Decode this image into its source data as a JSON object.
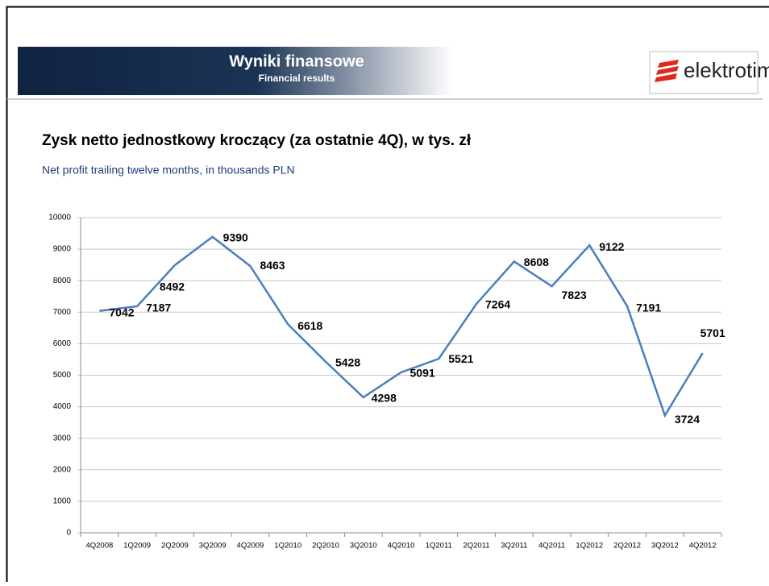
{
  "header": {
    "title": "Wyniki finansowe",
    "subtitle": "Financial results",
    "logo": "elektrotim"
  },
  "chart_data": {
    "type": "line",
    "title": "Zysk netto jednostkowy kroczący (za ostatnie 4Q), w tys. zł",
    "subtitle": "Net profit trailing twelve months, in thousands PLN",
    "categories": [
      "4Q2008",
      "1Q2009",
      "2Q2009",
      "3Q2009",
      "4Q2009",
      "1Q2010",
      "2Q2010",
      "3Q2010",
      "4Q2010",
      "1Q2011",
      "2Q2011",
      "3Q2011",
      "4Q2011",
      "1Q2012",
      "2Q2012",
      "3Q2012",
      "4Q2012"
    ],
    "values": [
      7042,
      7187,
      8492,
      9390,
      8463,
      6618,
      5428,
      4298,
      5091,
      5521,
      7264,
      8608,
      7823,
      9122,
      7191,
      3724,
      5701
    ],
    "color": "#4a7ebb",
    "ylim": [
      0,
      10000
    ],
    "yticks": [
      0,
      1000,
      2000,
      3000,
      4000,
      5000,
      6000,
      7000,
      8000,
      9000,
      10000
    ],
    "grid": true
  }
}
